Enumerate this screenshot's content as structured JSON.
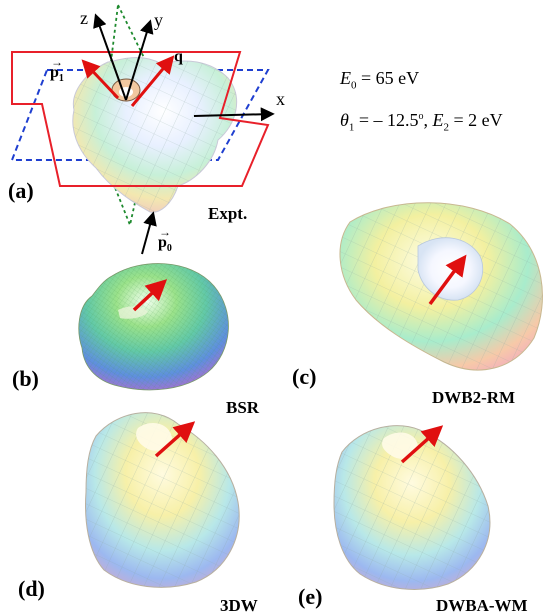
{
  "panels": {
    "a": {
      "tag": "(a)",
      "method": "Expt."
    },
    "b": {
      "tag": "(b)",
      "method": "BSR"
    },
    "c": {
      "tag": "(c)",
      "method": "DWB2-RM"
    },
    "d": {
      "tag": "(d)",
      "method": "3DW"
    },
    "e": {
      "tag": "(e)",
      "method": "DWBA-WM"
    }
  },
  "axes": {
    "x": "x",
    "y": "y",
    "z": "z"
  },
  "vectors": {
    "p1": "p",
    "p1_sub": "1",
    "p0": "p",
    "p0_sub": "0",
    "q": "q"
  },
  "params": {
    "E0_sym": "E",
    "E0_sub": "0",
    "E0_val": " = 65 eV",
    "theta_sym": "θ",
    "theta_sub": "1",
    "theta_val": " = – 12.5",
    "theta_deg": "o",
    "E2_sym": "E",
    "E2_sub": "2",
    "E2_val": " = 2 eV"
  },
  "colors": {
    "scattering_plane": "#e8202a",
    "perp_plane": "#1f3fd0",
    "full_perp_plane": "#1e8a2e",
    "q_arrow": "#e01010"
  }
}
